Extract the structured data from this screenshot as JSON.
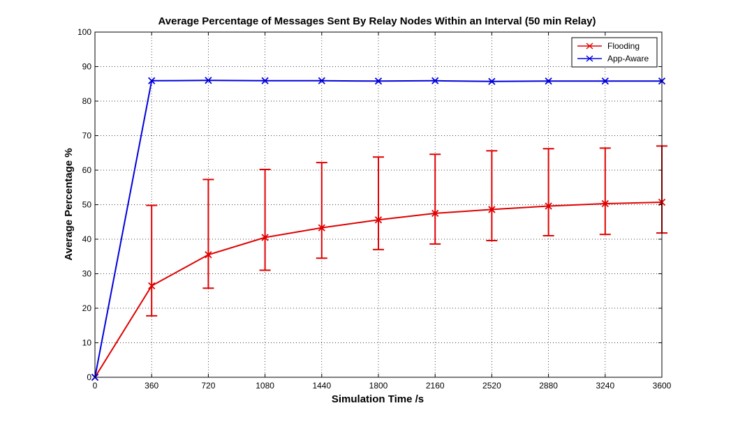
{
  "chart_data": {
    "type": "line",
    "title": "Average Percentage of Messages Sent By Relay Nodes Within an Interval (50 min Relay)",
    "xlabel": "Simulation Time /s",
    "ylabel": "Average Percentage %",
    "xlim": [
      0,
      3600
    ],
    "ylim": [
      0,
      100
    ],
    "xticks": [
      0,
      360,
      720,
      1080,
      1440,
      1800,
      2160,
      2520,
      2880,
      3240,
      3600
    ],
    "yticks": [
      0,
      10,
      20,
      30,
      40,
      50,
      60,
      70,
      80,
      90,
      100
    ],
    "grid": true,
    "legend": "top-right",
    "x": [
      0,
      360,
      720,
      1080,
      1440,
      1800,
      2160,
      2520,
      2880,
      3240,
      3600
    ],
    "series": [
      {
        "name": "Flooding",
        "color": "#e00000",
        "marker": "x",
        "values": [
          0,
          26.5,
          35.5,
          40.5,
          43.3,
          45.6,
          47.5,
          48.6,
          49.6,
          50.3,
          50.7
        ],
        "error_low": [
          0,
          17.8,
          25.8,
          31.0,
          34.5,
          37.0,
          38.6,
          39.6,
          41.0,
          41.4,
          41.8
        ],
        "error_high": [
          0,
          49.8,
          57.3,
          60.2,
          62.2,
          63.8,
          64.6,
          65.6,
          66.2,
          66.4,
          67.0
        ]
      },
      {
        "name": "App-Aware",
        "color": "#0000dd",
        "marker": "x",
        "values": [
          0,
          85.9,
          86.0,
          85.9,
          85.9,
          85.8,
          85.9,
          85.7,
          85.8,
          85.8,
          85.8
        ]
      }
    ]
  }
}
